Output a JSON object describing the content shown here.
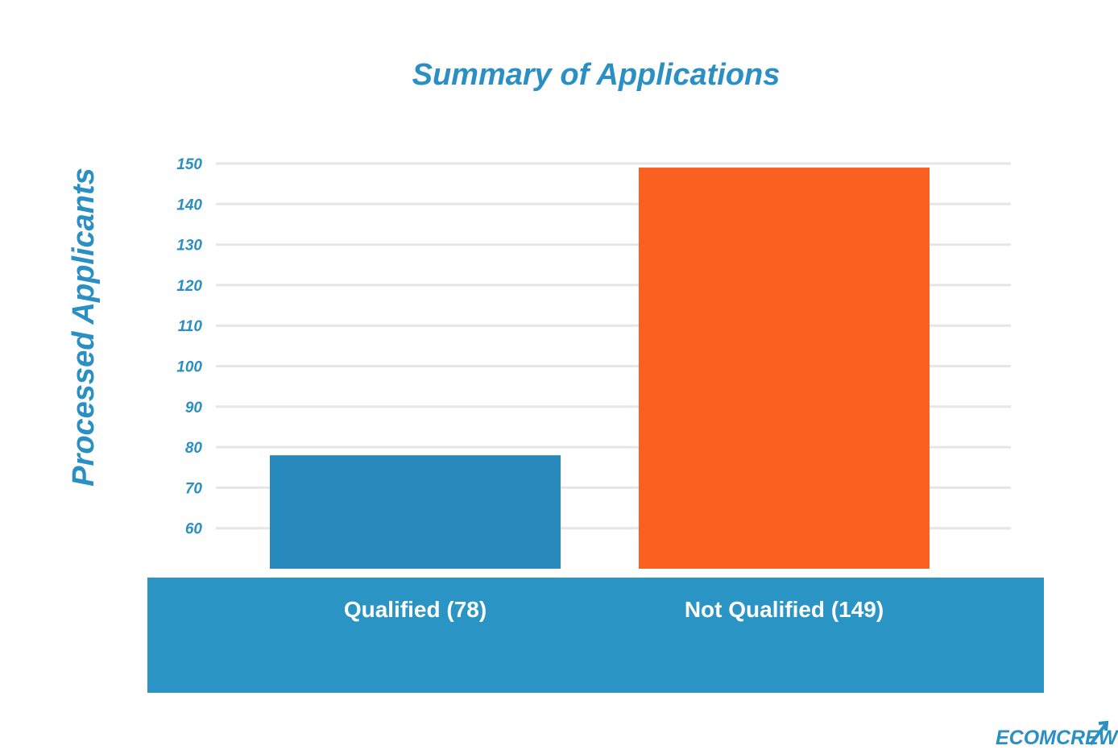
{
  "chart_data": {
    "type": "bar",
    "title": "Summary of Applications",
    "ylabel": "Processed Applicants",
    "xlabel": "",
    "categories": [
      "Qualified (78)",
      "Not Qualified (149)"
    ],
    "values": [
      78,
      149
    ],
    "colors": [
      "#2889bd",
      "#fa6020"
    ],
    "yticks": [
      60,
      70,
      80,
      90,
      100,
      110,
      120,
      130,
      140,
      150
    ],
    "ylim": [
      50,
      150
    ],
    "grid": true,
    "category_band_color": "#2a94c4"
  },
  "branding": {
    "logo_text": "ECOMCREW",
    "logo_color": "#2a8fc3"
  }
}
